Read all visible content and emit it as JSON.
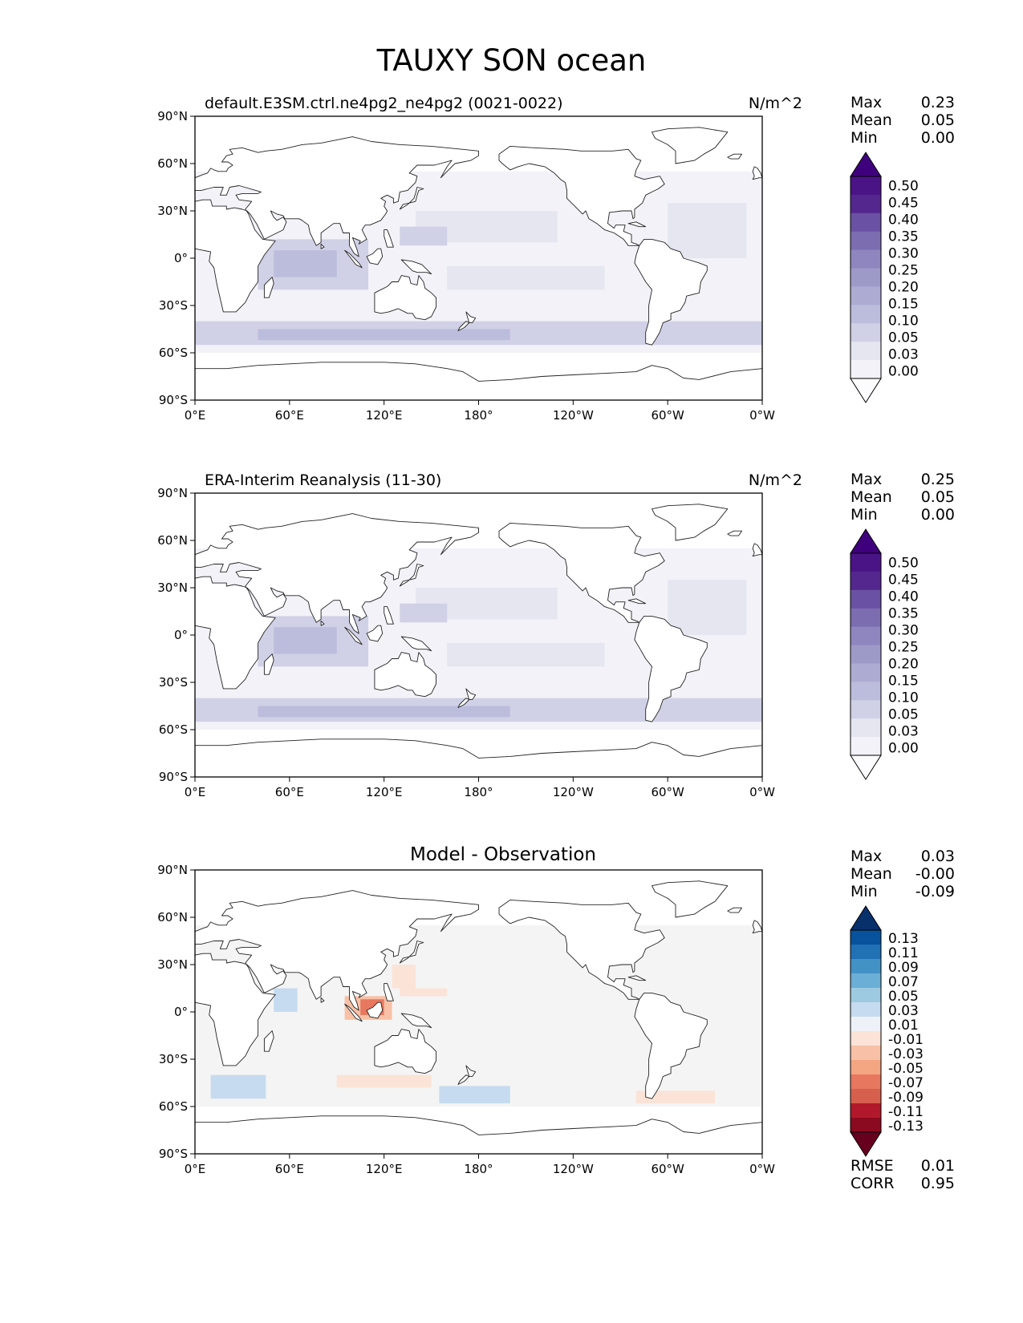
{
  "page_title": "TAUXY SON ocean",
  "x_ticks": [
    "0°E",
    "60°E",
    "120°E",
    "180°",
    "120°W",
    "60°W",
    "0°W"
  ],
  "y_ticks": [
    "90°N",
    "60°N",
    "30°N",
    "0°",
    "30°S",
    "60°S",
    "90°S"
  ],
  "panels": [
    {
      "title_left": "default.E3SM.ctrl.ne4pg2_ne4pg2 (0021-0022)",
      "title_right": "N/m^2",
      "stats": {
        "max_label": "Max",
        "max": "0.23",
        "mean_label": "Mean",
        "mean": "0.05",
        "min_label": "Min",
        "min": "0.00"
      },
      "colorbar": {
        "levels": [
          "0.50",
          "0.45",
          "0.40",
          "0.35",
          "0.30",
          "0.25",
          "0.20",
          "0.15",
          "0.10",
          "0.05",
          "0.03",
          "0.00"
        ],
        "colors": [
          "#3f007d",
          "#4a1486",
          "#54278f",
          "#6a51a3",
          "#7c6db1",
          "#8f86c0",
          "#9e9ac8",
          "#aeabd2",
          "#bcbddc",
          "#d0d1e6",
          "#e6e6f1",
          "#f2f2f8",
          "#fcfbfd"
        ]
      }
    },
    {
      "title_left": "ERA-Interim Reanalysis (11-30)",
      "title_right": "N/m^2",
      "stats": {
        "max_label": "Max",
        "max": "0.25",
        "mean_label": "Mean",
        "mean": "0.05",
        "min_label": "Min",
        "min": "0.00"
      },
      "colorbar": {
        "levels": [
          "0.50",
          "0.45",
          "0.40",
          "0.35",
          "0.30",
          "0.25",
          "0.20",
          "0.15",
          "0.10",
          "0.05",
          "0.03",
          "0.00"
        ],
        "colors": [
          "#3f007d",
          "#4a1486",
          "#54278f",
          "#6a51a3",
          "#7c6db1",
          "#8f86c0",
          "#9e9ac8",
          "#aeabd2",
          "#bcbddc",
          "#d0d1e6",
          "#e6e6f1",
          "#f2f2f8",
          "#fcfbfd"
        ]
      }
    },
    {
      "title_center": "Model - Observation",
      "stats": {
        "max_label": "Max",
        "max": "0.03",
        "mean_label": "Mean",
        "mean": "-0.00",
        "min_label": "Min",
        "min": "-0.09"
      },
      "colorbar": {
        "levels": [
          "0.13",
          "0.11",
          "0.09",
          "0.07",
          "0.05",
          "0.03",
          "0.01",
          "-0.01",
          "-0.03",
          "-0.05",
          "-0.07",
          "-0.09",
          "-0.11",
          "-0.13"
        ],
        "colors": [
          "#08306b",
          "#08519c",
          "#2171b5",
          "#4292c6",
          "#6baed6",
          "#9ecae1",
          "#c6dbef",
          "#eef2f8",
          "#fbe3d7",
          "#f8c0a6",
          "#f4a582",
          "#e7775e",
          "#d6604d",
          "#b2182b",
          "#8b0a1f",
          "#67001f"
        ]
      },
      "bottom_stats": {
        "rmse_label": "RMSE",
        "rmse": "0.01",
        "corr_label": "CORR",
        "corr": "0.95"
      }
    }
  ],
  "colors": {
    "land_outline": "#222222",
    "ocean_mask": "#ffffff",
    "diff_neutral": "#f4f4f4"
  }
}
